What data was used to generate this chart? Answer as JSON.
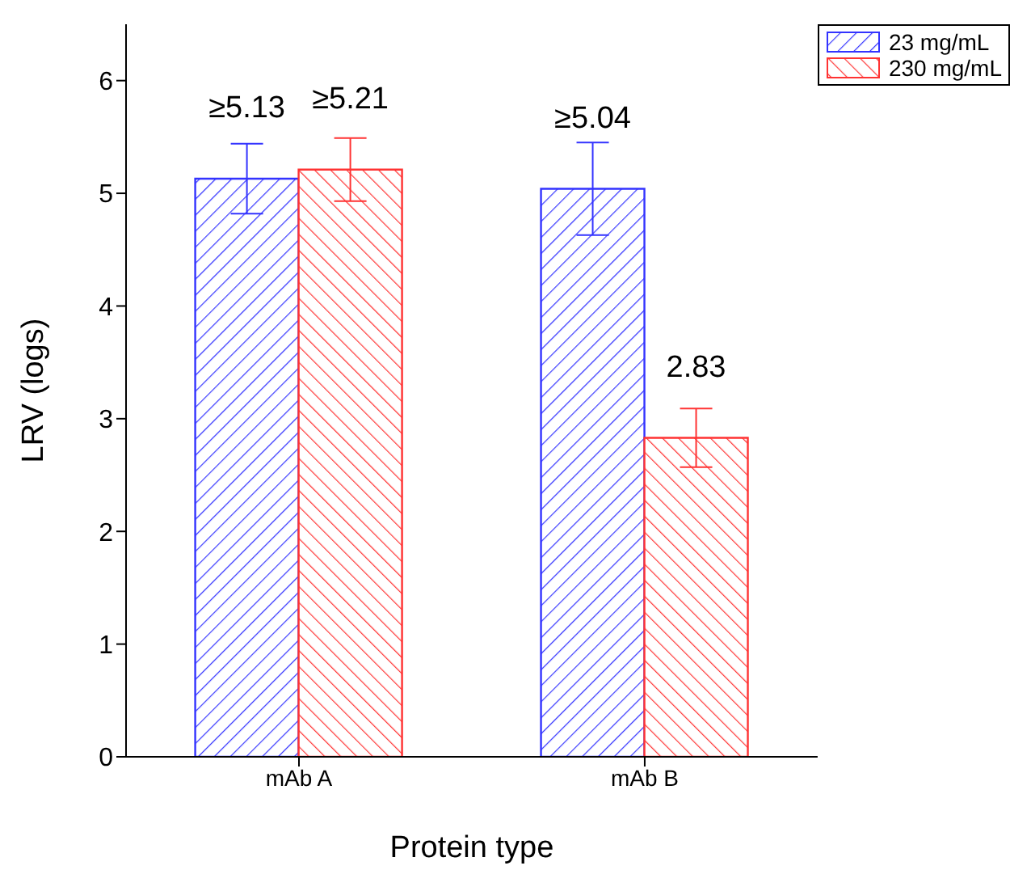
{
  "chart_data": {
    "type": "bar",
    "xlabel": "Protein type",
    "ylabel": "LRV (logs)",
    "categories": [
      "mAb A",
      "mAb B"
    ],
    "series": [
      {
        "name": "23 mg/mL",
        "color": "#3333ff",
        "values": [
          5.13,
          5.04
        ],
        "errors": [
          0.31,
          0.41
        ],
        "value_labels": [
          "≥5.13",
          "≥5.04"
        ]
      },
      {
        "name": "230 mg/mL",
        "color": "#ff3333",
        "values": [
          5.21,
          2.83
        ],
        "errors": [
          0.28,
          0.26
        ],
        "value_labels": [
          "≥5.21",
          "2.83"
        ]
      }
    ],
    "ylim": [
      0,
      6.5
    ],
    "yticks": [
      0,
      1,
      2,
      3,
      4,
      5,
      6
    ],
    "legend": "top right"
  }
}
